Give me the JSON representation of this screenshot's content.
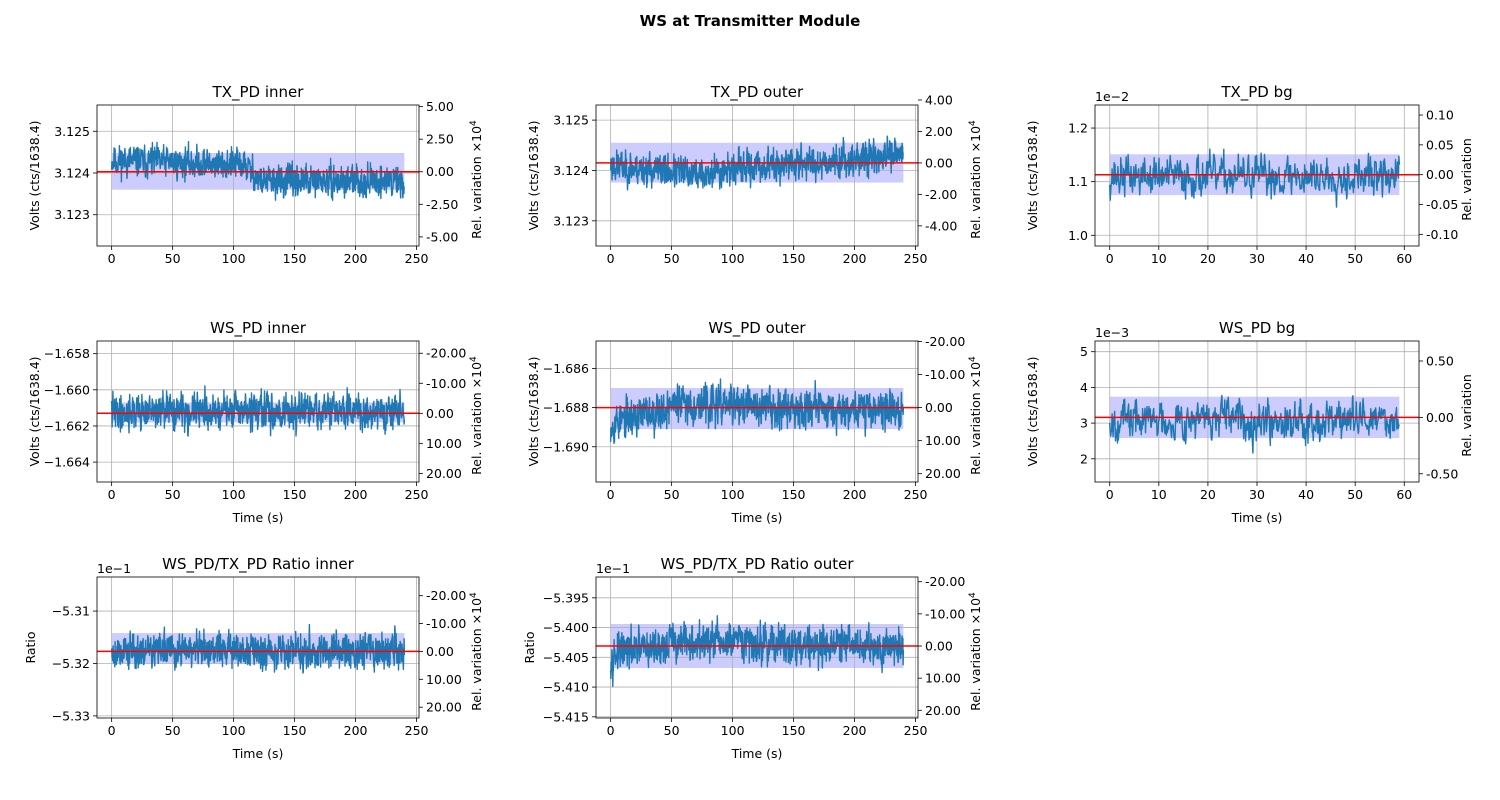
{
  "figure": {
    "suptitle": "WS at Transmitter Module"
  },
  "chart_data": [
    {
      "type": "line",
      "title": "TX_PD inner",
      "xlabel": "",
      "ylabel": "Volts (cts/1638.4)",
      "y2label": "Rel. variation ×10",
      "y2label_sup": "4",
      "xlim": [
        -12,
        252
      ],
      "ylim": [
        3.12225,
        3.12563
      ],
      "xticks": [
        0,
        50,
        100,
        150,
        200,
        250
      ],
      "yticks": [
        3.123,
        3.124,
        3.125
      ],
      "y2ticks": [
        "5.00",
        "2.50",
        "0.00",
        "-2.50",
        "-5.00"
      ],
      "y2tick_values": [
        5,
        2.5,
        0,
        -2.5,
        -5
      ],
      "offset_text": "",
      "mean": 3.12403,
      "band": [
        3.1236,
        3.12448
      ],
      "series": [
        {
          "x_range": [
            0,
            240
          ],
          "points": 1200,
          "segments": [
            {
              "to": 0.45,
              "from_value": 3.1243,
              "to_value": 3.1242
            },
            {
              "to": 0.5,
              "from_value": 3.1242,
              "to_value": 3.1239
            },
            {
              "to": 1.0,
              "from_value": 3.1238,
              "to_value": 3.1238
            }
          ],
          "noise": 0.00042,
          "seed": 11
        }
      ],
      "grid": true
    },
    {
      "type": "line",
      "title": "TX_PD outer",
      "xlabel": "",
      "ylabel": "Volts (cts/1638.4)",
      "y2label": "Rel. variation ×10",
      "y2label_sup": "4",
      "xlim": [
        -12,
        252
      ],
      "ylim": [
        3.1225,
        3.1253
      ],
      "xticks": [
        0,
        50,
        100,
        150,
        200,
        250
      ],
      "yticks": [
        3.123,
        3.124,
        3.125
      ],
      "y2ticks": [
        "4.00",
        "2.00",
        "0.00",
        "-2.00",
        "-4.00"
      ],
      "y2tick_values": [
        4,
        2,
        0,
        -2,
        -4
      ],
      "offset_text": "",
      "mean": 3.12415,
      "band": [
        3.12376,
        3.12455
      ],
      "series": [
        {
          "x_range": [
            0,
            240
          ],
          "points": 1200,
          "segments": [
            {
              "to": 0.35,
              "from_value": 3.1241,
              "to_value": 3.1239
            },
            {
              "to": 1.0,
              "from_value": 3.124,
              "to_value": 3.1243
            }
          ],
          "noise": 0.00036,
          "seed": 23
        }
      ],
      "grid": true
    },
    {
      "type": "line",
      "title": "TX_PD bg",
      "xlabel": "",
      "ylabel": "Volts (cts/1638.4)",
      "y2label": "Rel. variation",
      "y2label_sup": "",
      "xlim": [
        -3,
        63
      ],
      "ylim": [
        0.98,
        1.243
      ],
      "xticks": [
        0,
        10,
        20,
        30,
        40,
        50,
        60
      ],
      "yticks": [
        1.0,
        1.1,
        1.2
      ],
      "y2ticks": [
        "0.10",
        "0.05",
        "0.00",
        "-0.05",
        "-0.10"
      ],
      "y2tick_values": [
        0.1,
        0.05,
        0,
        -0.05,
        -0.1
      ],
      "offset_text": "1e−2",
      "mean": 1.113,
      "band": [
        1.075,
        1.151
      ],
      "series": [
        {
          "x_range": [
            0,
            59
          ],
          "points": 600,
          "segments": [
            {
              "to": 1.0,
              "from_value": 1.11,
              "to_value": 1.11
            }
          ],
          "noise": 0.042,
          "seed": 37
        }
      ],
      "grid": true
    },
    {
      "type": "line",
      "title": "WS_PD inner",
      "xlabel": "Time (s)",
      "ylabel": "Volts (cts/1638.4)",
      "y2label": "Rel. variation ×10",
      "y2label_sup": "4",
      "xlim": [
        -12,
        252
      ],
      "ylim": [
        -1.6651,
        -1.6573
      ],
      "xticks": [
        0,
        50,
        100,
        150,
        200,
        250
      ],
      "yticks": [
        -1.658,
        -1.66,
        -1.662,
        -1.664
      ],
      "y2ticks": [
        "-20.00",
        "-10.00",
        "0.00",
        "10.00",
        "20.00"
      ],
      "y2tick_values": [
        -20,
        -10,
        0,
        10,
        20
      ],
      "offset_text": "",
      "mean": -1.6613,
      "band": [
        -1.6618,
        -1.6607
      ],
      "series": [
        {
          "x_range": [
            0,
            240
          ],
          "points": 1200,
          "segments": [
            {
              "to": 1.0,
              "from_value": -1.6612,
              "to_value": -1.6612
            }
          ],
          "noise": 0.0011,
          "seed": 41
        }
      ],
      "grid": true
    },
    {
      "type": "line",
      "title": "WS_PD outer",
      "xlabel": "Time (s)",
      "ylabel": "Volts (cts/1638.4)",
      "y2label": "Rel. variation ×10",
      "y2label_sup": "4",
      "xlim": [
        -12,
        252
      ],
      "ylim": [
        -1.6918,
        -1.6846
      ],
      "xticks": [
        0,
        50,
        100,
        150,
        200,
        250
      ],
      "yticks": [
        -1.686,
        -1.688,
        -1.69
      ],
      "y2ticks": [
        "-20.00",
        "-10.00",
        "0.00",
        "10.00",
        "20.00"
      ],
      "y2tick_values": [
        -20,
        -10,
        0,
        10,
        20
      ],
      "offset_text": "",
      "mean": -1.688,
      "band": [
        -1.6891,
        -1.687
      ],
      "series": [
        {
          "x_range": [
            0,
            240
          ],
          "points": 1200,
          "segments": [
            {
              "to": 0.2,
              "from_value": -1.6888,
              "to_value": -1.688
            },
            {
              "to": 1.0,
              "from_value": -1.6878,
              "to_value": -1.6881
            }
          ],
          "noise": 0.0011,
          "seed": 53
        }
      ],
      "grid": true
    },
    {
      "type": "line",
      "title": "WS_PD bg",
      "xlabel": "Time (s)",
      "ylabel": "Volts (cts/1638.4)",
      "y2label": "Rel. variation",
      "y2label_sup": "",
      "xlim": [
        -3,
        63
      ],
      "ylim": [
        1.35,
        5.3
      ],
      "xticks": [
        0,
        10,
        20,
        30,
        40,
        50,
        60
      ],
      "yticks": [
        2,
        3,
        4,
        5
      ],
      "y2ticks": [
        "0.50",
        "0.00",
        "-0.50"
      ],
      "y2tick_values": [
        0.5,
        0,
        -0.5
      ],
      "offset_text": "1e−3",
      "mean": 3.16,
      "band": [
        2.58,
        3.74
      ],
      "series": [
        {
          "x_range": [
            0,
            59
          ],
          "points": 600,
          "segments": [
            {
              "to": 1.0,
              "from_value": 3.1,
              "to_value": 3.1
            }
          ],
          "noise": 0.62,
          "seed": 67
        }
      ],
      "grid": true
    },
    {
      "type": "line",
      "title": "WS_PD/TX_PD Ratio inner",
      "xlabel": "Time (s)",
      "ylabel": "Ratio",
      "y2label": "Rel. variation ×10",
      "y2label_sup": "4",
      "xlim": [
        -12,
        252
      ],
      "ylim": [
        -5.3304,
        -5.3035
      ],
      "xticks": [
        0,
        50,
        100,
        150,
        200,
        250
      ],
      "yticks": [
        -5.31,
        -5.32,
        -5.33
      ],
      "y2ticks": [
        "-20.00",
        "-10.00",
        "0.00",
        "10.00",
        "20.00"
      ],
      "y2tick_values": [
        -20,
        -10,
        0,
        10,
        20
      ],
      "offset_text": "1e−1",
      "mean": -5.3177,
      "band": [
        -5.32,
        -5.3142
      ],
      "series": [
        {
          "x_range": [
            0,
            240
          ],
          "points": 1200,
          "segments": [
            {
              "to": 1.0,
              "from_value": -5.3175,
              "to_value": -5.3175
            }
          ],
          "noise": 0.0038,
          "seed": 79
        }
      ],
      "grid": true
    },
    {
      "type": "line",
      "title": "WS_PD/TX_PD Ratio outer",
      "xlabel": "Time (s)",
      "ylabel": "Ratio",
      "y2label": "Rel. variation ×10",
      "y2label_sup": "4",
      "xlim": [
        -12,
        252
      ],
      "ylim": [
        -5.4152,
        -5.3915
      ],
      "xticks": [
        0,
        50,
        100,
        150,
        200,
        250
      ],
      "yticks": [
        -5.395,
        -5.4,
        -5.405,
        -5.41,
        -5.415
      ],
      "y2ticks": [
        "-20.00",
        "-10.00",
        "0.00",
        "10.00",
        "20.00"
      ],
      "y2tick_values": [
        -20,
        -10,
        0,
        10,
        20
      ],
      "offset_text": "1e−1",
      "mean": -5.4031,
      "band": [
        -5.4068,
        -5.3994
      ],
      "series": [
        {
          "x_range": [
            0,
            240
          ],
          "points": 1200,
          "segments": [
            {
              "to": 0.2,
              "from_value": -5.4045,
              "to_value": -5.403
            },
            {
              "to": 1.0,
              "from_value": -5.4025,
              "to_value": -5.403
            }
          ],
          "noise": 0.0036,
          "seed": 97
        }
      ],
      "grid": true
    }
  ],
  "colors": {
    "line": "#1f77b4",
    "mean": "#ff0000",
    "band": "#0000ff",
    "grid": "#b0b0b0"
  }
}
